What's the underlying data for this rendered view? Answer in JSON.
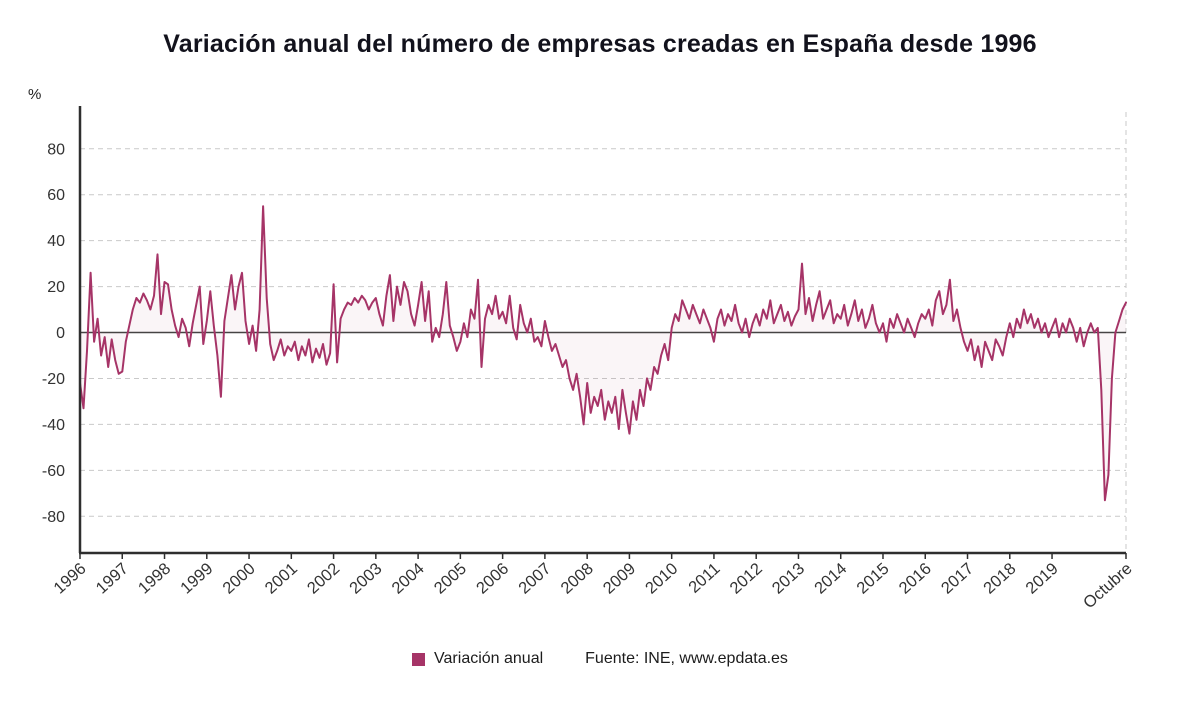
{
  "title": "Variación anual del número de empresas creadas en España desde 1996",
  "y_axis_unit": "%",
  "legend": {
    "series_label": "Variación anual",
    "source_label": "Fuente: INE, www.epdata.es"
  },
  "colors": {
    "line": "#a63467",
    "area_fill": "rgba(166,52,103,0.05)",
    "grid": "#c9c9c9",
    "axis": "#2e2e2e",
    "zero_line": "#444444",
    "tick_text": "#333333"
  },
  "chart_data": {
    "type": "line",
    "title": "Variación anual del número de empresas creadas en España desde 1996",
    "xlabel": "",
    "ylabel": "%",
    "ylim": [
      -96,
      96
    ],
    "yticks": [
      80,
      60,
      40,
      20,
      0,
      -20,
      -40,
      -60,
      -80
    ],
    "grid": "dashed-horizontal",
    "legend_position": "bottom",
    "x_tick_labels": [
      "1996",
      "1997",
      "1998",
      "1999",
      "2000",
      "2001",
      "2002",
      "2003",
      "2004",
      "2005",
      "2006",
      "2007",
      "2008",
      "2009",
      "2010",
      "2011",
      "2012",
      "2013",
      "2014",
      "2015",
      "2016",
      "2017",
      "2018",
      "2019",
      "Octubre"
    ],
    "x_tick_indices": [
      0,
      12,
      24,
      36,
      48,
      60,
      72,
      84,
      96,
      108,
      120,
      132,
      144,
      156,
      168,
      180,
      192,
      204,
      216,
      228,
      240,
      252,
      264,
      276,
      297
    ],
    "series": [
      {
        "name": "Variación anual",
        "frequency": "monthly",
        "start": "1996-01",
        "end": "2020-10",
        "values": [
          -22,
          -33,
          -8,
          26,
          -4,
          6,
          -10,
          -2,
          -15,
          -3,
          -12,
          -18,
          -17,
          -4,
          3,
          10,
          15,
          13,
          17,
          14,
          10,
          16,
          34,
          8,
          22,
          21,
          10,
          3,
          -2,
          6,
          2,
          -6,
          4,
          12,
          20,
          -5,
          5,
          18,
          3,
          -10,
          -28,
          5,
          15,
          25,
          10,
          20,
          26,
          5,
          -5,
          3,
          -8,
          10,
          55,
          15,
          -5,
          -12,
          -8,
          -3,
          -10,
          -6,
          -8,
          -4,
          -12,
          -6,
          -10,
          -3,
          -13,
          -7,
          -11,
          -5,
          -14,
          -9,
          21,
          -13,
          6,
          10,
          13,
          12,
          15,
          13,
          16,
          14,
          10,
          13,
          15,
          8,
          3,
          16,
          25,
          5,
          20,
          12,
          22,
          18,
          8,
          3,
          12,
          22,
          5,
          18,
          -4,
          2,
          -2,
          8,
          22,
          3,
          -2,
          -8,
          -4,
          4,
          -2,
          10,
          6,
          23,
          -15,
          6,
          12,
          8,
          16,
          6,
          9,
          4,
          16,
          2,
          -3,
          12,
          4,
          0,
          6,
          -4,
          -2,
          -6,
          5,
          -2,
          -8,
          -5,
          -10,
          -15,
          -12,
          -20,
          -25,
          -18,
          -28,
          -40,
          -22,
          -35,
          -28,
          -32,
          -25,
          -38,
          -30,
          -35,
          -28,
          -42,
          -25,
          -35,
          -44,
          -30,
          -38,
          -25,
          -32,
          -20,
          -25,
          -15,
          -18,
          -10,
          -5,
          -12,
          2,
          8,
          5,
          14,
          10,
          6,
          12,
          8,
          4,
          10,
          6,
          2,
          -4,
          6,
          10,
          3,
          8,
          5,
          12,
          4,
          0,
          6,
          -2,
          4,
          8,
          3,
          10,
          6,
          14,
          4,
          8,
          12,
          5,
          9,
          3,
          7,
          10,
          30,
          8,
          15,
          5,
          12,
          18,
          6,
          10,
          14,
          4,
          8,
          6,
          12,
          3,
          8,
          14,
          5,
          10,
          2,
          6,
          12,
          4,
          0,
          4,
          -4,
          6,
          2,
          8,
          4,
          0,
          6,
          2,
          -2,
          4,
          8,
          6,
          10,
          3,
          14,
          18,
          8,
          12,
          23,
          5,
          10,
          2,
          -4,
          -8,
          -3,
          -12,
          -6,
          -15,
          -4,
          -8,
          -12,
          -3,
          -6,
          -10,
          -2,
          4,
          -2,
          6,
          2,
          10,
          4,
          8,
          2,
          6,
          0,
          4,
          -2,
          2,
          6,
          -2,
          4,
          0,
          6,
          2,
          -4,
          2,
          -6,
          0,
          4,
          0,
          2,
          -25,
          -73,
          -62,
          -20,
          0,
          5,
          10,
          13
        ]
      }
    ]
  }
}
